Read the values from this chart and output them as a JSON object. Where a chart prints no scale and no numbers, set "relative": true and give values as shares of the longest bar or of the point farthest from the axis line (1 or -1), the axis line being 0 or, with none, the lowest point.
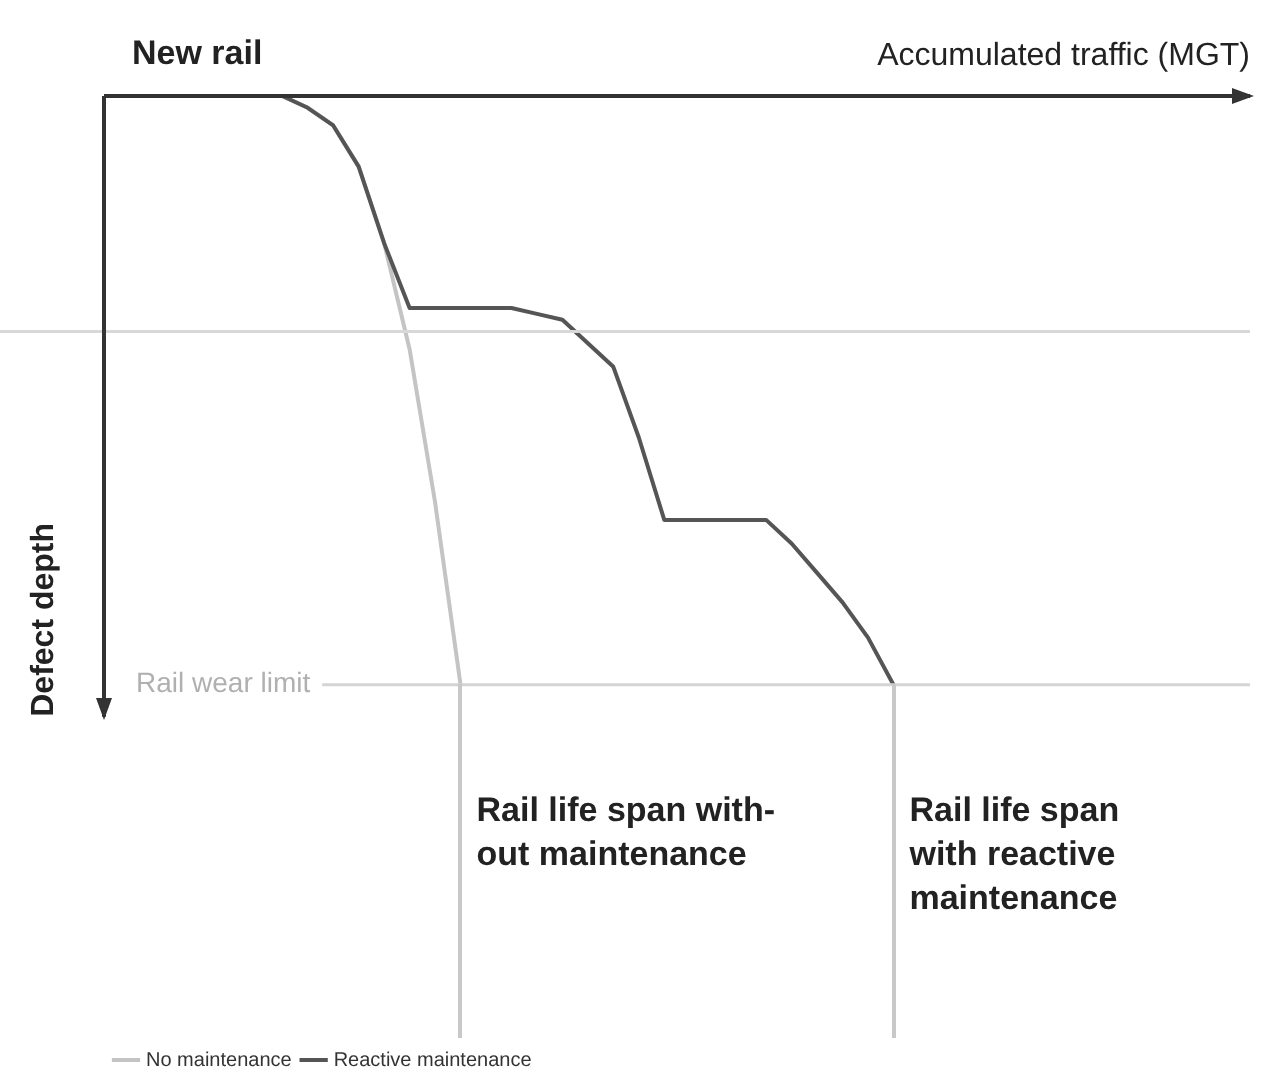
{
  "chart_data": {
    "type": "line",
    "relative": true,
    "xlabel": "Accumulated traffic (MGT)",
    "ylabel": "Defect depth",
    "legend": "bottom left",
    "marker": "none",
    "line_style": "solid",
    "categories": [
      null,
      null,
      null,
      null,
      null,
      null,
      null,
      null,
      null,
      null,
      null,
      null,
      null,
      null,
      null,
      null,
      null,
      null,
      null,
      null,
      null,
      null,
      null,
      null,
      null,
      null,
      null,
      null,
      null,
      null,
      null,
      null,
      null,
      null,
      null,
      null,
      null,
      null,
      null,
      null,
      null,
      null,
      null,
      null,
      null,
      null
    ],
    "series": [
      {
        "name": "No maintenance",
        "color": "#c4c4c4",
        "values": [
          0,
          0,
          0,
          0,
          0,
          0,
          0,
          0,
          -0.02,
          -0.05,
          -0.12,
          -0.25,
          -0.43,
          -0.69,
          -1,
          null,
          null,
          null,
          null,
          null,
          null,
          null,
          null,
          null,
          null,
          null,
          null,
          null,
          null,
          null,
          null,
          null,
          null,
          null,
          null,
          null,
          null,
          null,
          null,
          null,
          null,
          null,
          null,
          null,
          null,
          null
        ]
      },
      {
        "name": "Reactive maintenance",
        "color": "#555555",
        "values": [
          0,
          0,
          0,
          0,
          0,
          0,
          0,
          0,
          -0.02,
          -0.05,
          -0.12,
          -0.25,
          -0.36,
          -0.36,
          -0.36,
          -0.36,
          -0.36,
          -0.37,
          -0.38,
          -0.42,
          -0.46,
          -0.58,
          -0.72,
          -0.72,
          -0.72,
          -0.72,
          -0.72,
          -0.76,
          -0.81,
          -0.86,
          -0.92,
          -1,
          null,
          null,
          null,
          null,
          null,
          null,
          null,
          null,
          null,
          null,
          null,
          null,
          null,
          null
        ]
      }
    ],
    "ref_lines": [
      {
        "axis": "y",
        "value": -0.4,
        "color": "#d8d8d8"
      },
      {
        "axis": "y",
        "value": -1,
        "label": "Rail wear limit",
        "color": "#d4d4d4"
      }
    ],
    "annotations": [
      "New rail",
      "Rail life span with-\nout maintenance",
      "Rail life span\nwith reactive\nmaintenance"
    ]
  }
}
